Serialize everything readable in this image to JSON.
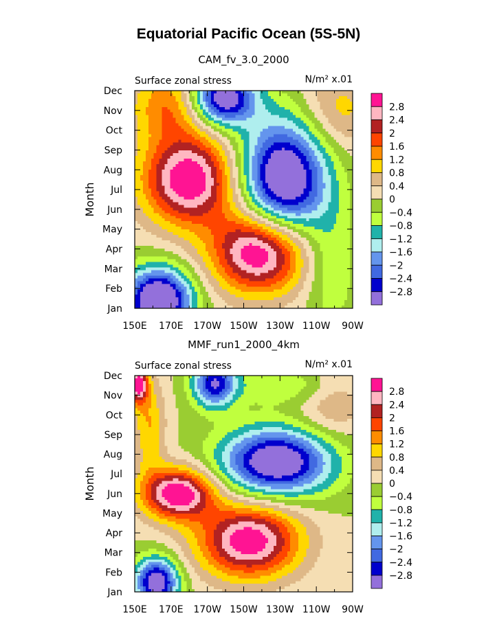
{
  "title": "Equatorial Pacific Ocean (5S-5N)",
  "palette": {
    "ge_2.8": "#ff1493",
    "2.4_2.8": "#ffb6c1",
    "2.0_2.4": "#b22222",
    "1.6_2.0": "#ff4500",
    "1.2_1.6": "#ff8c00",
    "0.8_1.2": "#ffd700",
    "0.4_0.8": "#deb887",
    "0_0.4": "#f5deb3",
    "-0.4_0": "#9acd32",
    "-0.8_-0.4": "#c0ff3e",
    "-1.2_-0.8": "#20b2aa",
    "-1.6_-1.2": "#afeeee",
    "-2.0_-1.6": "#6495ed",
    "-2.4_-2.0": "#4169e1",
    "-2.8_-2.4": "#0000cd",
    "lt_-2.8": "#9370db"
  },
  "chart_data": [
    {
      "type": "heatmap",
      "title": "CAM_fv_3.0_2000",
      "left_label": "Surface zonal stress",
      "units_label": "N/m² x.01",
      "ylabel": "Month",
      "x_ticks": [
        "150E",
        "170E",
        "170W",
        "150W",
        "130W",
        "110W",
        "90W"
      ],
      "xlim": [
        150,
        270
      ],
      "y_ticks": [
        "Jan",
        "Feb",
        "Mar",
        "Apr",
        "May",
        "Jun",
        "Jul",
        "Aug",
        "Sep",
        "Oct",
        "Nov",
        "Dec"
      ],
      "ylim": [
        1,
        12
      ],
      "colorbar_labels": [
        "2.8",
        "2.4",
        "2",
        "1.6",
        "1.2",
        "0.8",
        "0.4",
        "0",
        "-0.4",
        "-0.8",
        "-1.2",
        "-1.6",
        "-2",
        "-2.4",
        "-2.8"
      ],
      "features": [
        {
          "lon": 180,
          "month": 7.5,
          "amp": 3.3,
          "rx": 26,
          "ry": 2.3
        },
        {
          "lon": 219,
          "month": 3.9,
          "amp": 3.6,
          "rx": 26,
          "ry": 2.1
        },
        {
          "lon": 170,
          "month": 11.3,
          "amp": 1.6,
          "rx": 22,
          "ry": 1.8
        },
        {
          "lon": 232,
          "month": 7.5,
          "amp": -3.8,
          "rx": 24,
          "ry": 3.0
        },
        {
          "lon": 198,
          "month": 11.6,
          "amp": -3.5,
          "rx": 18,
          "ry": 1.4
        },
        {
          "lon": 163,
          "month": 1.4,
          "amp": -4.0,
          "rx": 18,
          "ry": 1.6
        },
        {
          "lon": 262,
          "month": 11.0,
          "amp": 1.0,
          "rx": 22,
          "ry": 2.2
        },
        {
          "lon": 258,
          "month": 3.0,
          "amp": -0.8,
          "rx": 14,
          "ry": 3.0
        }
      ]
    },
    {
      "type": "heatmap",
      "title": "MMF_run1_2000_4km",
      "left_label": "Surface zonal stress",
      "units_label": "N/m² x.01",
      "ylabel": "Month",
      "x_ticks": [
        "150E",
        "170E",
        "170W",
        "150W",
        "130W",
        "110W",
        "90W"
      ],
      "xlim": [
        150,
        270
      ],
      "y_ticks": [
        "Jan",
        "Feb",
        "Mar",
        "Apr",
        "May",
        "Jun",
        "Jul",
        "Aug",
        "Sep",
        "Oct",
        "Nov",
        "Dec"
      ],
      "ylim": [
        1,
        12
      ],
      "colorbar_labels": [
        "2.8",
        "2.4",
        "2",
        "1.6",
        "1.2",
        "0.8",
        "0.4",
        "0",
        "-0.4",
        "-0.8",
        "-1.2",
        "-1.6",
        "-2",
        "-2.4",
        "-2.8"
      ],
      "features": [
        {
          "lon": 174,
          "month": 6.0,
          "amp": 3.3,
          "rx": 20,
          "ry": 1.3
        },
        {
          "lon": 213,
          "month": 3.6,
          "amp": 3.2,
          "rx": 28,
          "ry": 1.9
        },
        {
          "lon": 228,
          "month": 7.6,
          "amp": -3.6,
          "rx": 30,
          "ry": 1.7
        },
        {
          "lon": 194,
          "month": 11.6,
          "amp": -2.8,
          "rx": 12,
          "ry": 1.2
        },
        {
          "lon": 162,
          "month": 1.5,
          "amp": -3.4,
          "rx": 12,
          "ry": 1.2
        },
        {
          "lon": 152,
          "month": 11.6,
          "amp": 3.0,
          "rx": 5,
          "ry": 1.0
        },
        {
          "lon": 158,
          "month": 9.5,
          "amp": 1.2,
          "rx": 9,
          "ry": 2.5
        },
        {
          "lon": 258,
          "month": 10.8,
          "amp": 0.9,
          "rx": 20,
          "ry": 2.0
        },
        {
          "lon": 238,
          "month": 11.5,
          "amp": -0.9,
          "rx": 30,
          "ry": 1.0
        }
      ]
    }
  ]
}
